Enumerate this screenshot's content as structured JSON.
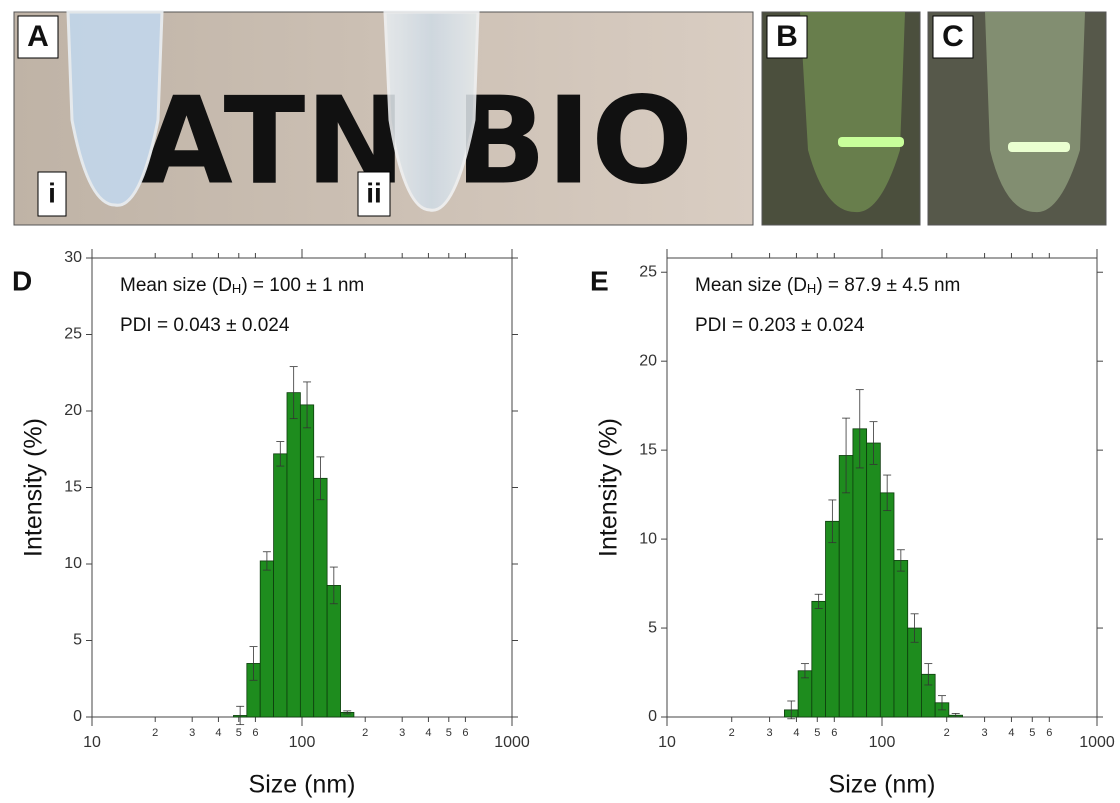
{
  "photos": {
    "panels": [
      "A",
      "B",
      "C"
    ],
    "tube_labels": [
      "i",
      "ii"
    ],
    "handwriting": [
      "ATN",
      "BIO"
    ]
  },
  "chart_data": [
    {
      "type": "histogram",
      "panel": "D",
      "annotations": [
        [
          "Mean size (D",
          "H",
          ") = 100 ± 1 nm"
        ],
        [
          "PDI = 0.043 ± 0.024"
        ]
      ],
      "xlabel": "Size (nm)",
      "ylabel": "Intensity (%)",
      "xscale": "log",
      "color": "#1e8c1e",
      "bins": [
        47.16,
        54.61,
        63.24,
        73.24,
        84.82,
        98.23,
        113.7,
        131.7,
        152.6,
        176.7
      ],
      "values": [
        0.1,
        3.5,
        10.2,
        17.2,
        21.2,
        20.4,
        15.6,
        8.6,
        0.3
      ],
      "errors": [
        0.6,
        1.1,
        0.6,
        0.8,
        1.7,
        1.5,
        1.4,
        1.2,
        0.1
      ],
      "xlim": [
        10,
        1000
      ],
      "ylim": [
        0,
        30
      ],
      "xticks": [
        10,
        {
          "value": 20,
          "label": "2"
        },
        {
          "value": 30,
          "label": "3"
        },
        {
          "value": 40,
          "label": "4"
        },
        {
          "value": 50,
          "label": "5"
        },
        {
          "value": 60,
          "label": "6"
        },
        100,
        {
          "value": 200,
          "label": "2"
        },
        {
          "value": 300,
          "label": "3"
        },
        {
          "value": 400,
          "label": "4"
        },
        {
          "value": 500,
          "label": "5"
        },
        {
          "value": 600,
          "label": "6"
        },
        1000
      ],
      "yticks": [
        0,
        5,
        10,
        15,
        20,
        25,
        30
      ]
    },
    {
      "type": "histogram",
      "panel": "E",
      "annotations": [
        [
          "Mean size (D",
          "H",
          ") = 87.9 ± 4.5 nm"
        ],
        [
          "PDI = 0.203 ± 0.024"
        ]
      ],
      "xlabel": "Size (nm)",
      "ylabel": "Intensity (%)",
      "xscale": "log",
      "color": "#1e8c1e",
      "bins": [
        35.16,
        40.72,
        47.16,
        54.61,
        63.24,
        73.24,
        84.82,
        98.23,
        113.7,
        131.7,
        152.6,
        176.7,
        204.6,
        237.0
      ],
      "values": [
        0.4,
        2.6,
        6.5,
        11.0,
        14.7,
        16.2,
        15.4,
        12.6,
        8.8,
        5.0,
        2.4,
        0.8,
        0.1
      ],
      "errors": [
        0.5,
        0.4,
        0.4,
        1.2,
        2.1,
        2.2,
        1.2,
        1.0,
        0.6,
        0.8,
        0.6,
        0.4,
        0.1
      ],
      "xlim": [
        10,
        1000
      ],
      "ylim": [
        0,
        25.8
      ],
      "xticks": [
        10,
        {
          "value": 20,
          "label": "2"
        },
        {
          "value": 30,
          "label": "3"
        },
        {
          "value": 40,
          "label": "4"
        },
        {
          "value": 50,
          "label": "5"
        },
        {
          "value": 60,
          "label": "6"
        },
        100,
        {
          "value": 200,
          "label": "2"
        },
        {
          "value": 300,
          "label": "3"
        },
        {
          "value": 400,
          "label": "4"
        },
        {
          "value": 500,
          "label": "5"
        },
        {
          "value": 600,
          "label": "6"
        },
        1000
      ],
      "yticks": [
        0,
        5,
        10,
        15,
        20,
        25
      ]
    }
  ]
}
